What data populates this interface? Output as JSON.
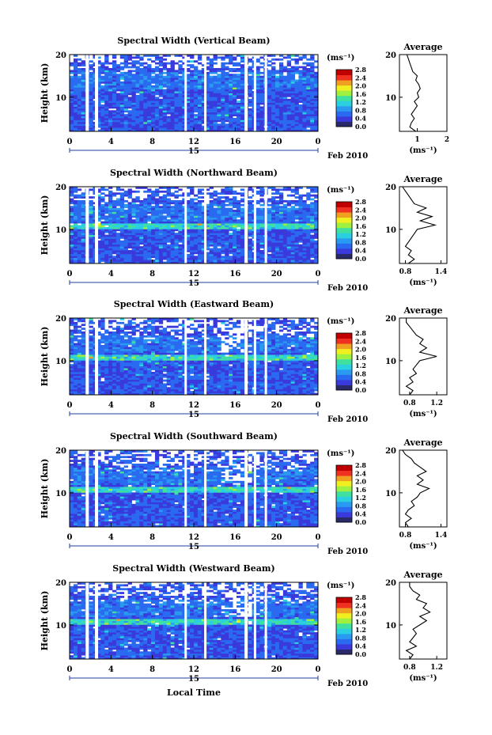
{
  "figure": {
    "xlabel": "Local Time",
    "date_label": "Feb 2010",
    "colorbar_unit": "(ms⁻¹)",
    "colorbar_ticks": [
      "0.0",
      "0.4",
      "0.8",
      "1.2",
      "1.6",
      "2.0",
      "2.4",
      "2.8"
    ],
    "colorbar_colors": [
      "#2a2a6a",
      "#3a3adc",
      "#2a6af0",
      "#2a9af0",
      "#2ad0e0",
      "#40e0a0",
      "#a0f040",
      "#f0f020",
      "#f0a020",
      "#f03020",
      "#c00000"
    ],
    "hour_ticks": [
      "0",
      "4",
      "8",
      "12",
      "16",
      "20",
      "0"
    ],
    "day_label": "15",
    "avg_title": "Average",
    "avg_xlabel": "(ms⁻¹)"
  },
  "chart_data": [
    {
      "type": "heatmap",
      "title": "Spectral Width (Vertical Beam)",
      "ylabel": "Height (km)",
      "xlabel": "Local Time",
      "x_ticks": [
        "0",
        "4",
        "8",
        "12",
        "16",
        "20",
        "0"
      ],
      "y_ticks": [
        "10",
        "20"
      ],
      "ylim": [
        2,
        20
      ],
      "colorbar": {
        "label": "(ms⁻¹)",
        "range": [
          0,
          2.8
        ]
      },
      "average": {
        "title": "Average",
        "xlabel": "(ms⁻¹)",
        "x_ticks": [
          "1",
          "2"
        ],
        "xlim": [
          0.4,
          2.0
        ],
        "heights": [
          2,
          3,
          4,
          5,
          6,
          7,
          8,
          9,
          10,
          11,
          12,
          13,
          14,
          15,
          16,
          17,
          18,
          19,
          20
        ],
        "values": [
          0.95,
          0.75,
          0.8,
          0.9,
          0.8,
          0.9,
          1.0,
          0.9,
          1.05,
          1.0,
          1.1,
          1.05,
          0.95,
          1.0,
          0.85,
          0.8,
          0.75,
          0.7,
          0.65
        ]
      }
    },
    {
      "type": "heatmap",
      "title": "Spectral Width (Northward Beam)",
      "ylabel": "Height (km)",
      "xlabel": "Local Time",
      "x_ticks": [
        "0",
        "4",
        "8",
        "12",
        "16",
        "20",
        "0"
      ],
      "y_ticks": [
        "10",
        "20"
      ],
      "ylim": [
        2,
        20
      ],
      "colorbar": {
        "label": "(ms⁻¹)",
        "range": [
          0,
          2.8
        ]
      },
      "average": {
        "title": "Average",
        "xlabel": "(ms⁻¹)",
        "x_ticks": [
          "0.8",
          "1.4"
        ],
        "xlim": [
          0.7,
          1.5
        ],
        "heights": [
          2,
          3,
          4,
          5,
          6,
          7,
          8,
          9,
          10,
          11,
          12,
          13,
          14,
          15,
          16,
          17,
          18,
          19,
          20
        ],
        "values": [
          0.85,
          0.95,
          0.85,
          0.9,
          0.8,
          0.85,
          0.9,
          0.95,
          1.0,
          1.3,
          1.05,
          1.25,
          1.0,
          1.15,
          0.95,
          0.9,
          0.85,
          0.8,
          0.75
        ]
      }
    },
    {
      "type": "heatmap",
      "title": "Spectral Width (Eastward Beam)",
      "ylabel": "Height (km)",
      "xlabel": "Local Time",
      "x_ticks": [
        "0",
        "4",
        "8",
        "12",
        "16",
        "20",
        "0"
      ],
      "y_ticks": [
        "10",
        "20"
      ],
      "ylim": [
        2,
        20
      ],
      "colorbar": {
        "label": "(ms⁻¹)",
        "range": [
          0,
          2.8
        ]
      },
      "average": {
        "title": "Average",
        "xlabel": "(ms⁻¹)",
        "x_ticks": [
          "0.8",
          "1.2"
        ],
        "xlim": [
          0.65,
          1.35
        ],
        "heights": [
          2,
          3,
          4,
          5,
          6,
          7,
          8,
          9,
          10,
          11,
          12,
          13,
          14,
          15,
          16,
          17,
          18,
          19,
          20
        ],
        "values": [
          0.8,
          0.85,
          0.75,
          0.85,
          0.8,
          0.9,
          0.85,
          0.9,
          0.95,
          1.2,
          0.95,
          1.05,
          0.95,
          1.0,
          0.9,
          0.85,
          0.8,
          0.75,
          0.75
        ]
      }
    },
    {
      "type": "heatmap",
      "title": "Spectral Width (Southward Beam)",
      "ylabel": "Height (km)",
      "xlabel": "Local Time",
      "x_ticks": [
        "0",
        "4",
        "8",
        "12",
        "16",
        "20",
        "0"
      ],
      "y_ticks": [
        "10",
        "20"
      ],
      "ylim": [
        2,
        20
      ],
      "colorbar": {
        "label": "(ms⁻¹)",
        "range": [
          0,
          2.8
        ]
      },
      "average": {
        "title": "Average",
        "xlabel": "(ms⁻¹)",
        "x_ticks": [
          "0.8",
          "1.4"
        ],
        "xlim": [
          0.7,
          1.5
        ],
        "heights": [
          2,
          3,
          4,
          5,
          6,
          7,
          8,
          9,
          10,
          11,
          12,
          13,
          14,
          15,
          16,
          17,
          18,
          19,
          20
        ],
        "values": [
          0.85,
          0.8,
          0.9,
          0.8,
          0.85,
          0.95,
          0.9,
          1.0,
          1.05,
          1.2,
          1.0,
          1.1,
          1.0,
          1.15,
          1.05,
          0.95,
          0.9,
          0.8,
          0.75
        ]
      }
    },
    {
      "type": "heatmap",
      "title": "Spectral Width (Westward Beam)",
      "ylabel": "Height (km)",
      "xlabel": "Local Time",
      "x_ticks": [
        "0",
        "4",
        "8",
        "12",
        "16",
        "20",
        "0"
      ],
      "y_ticks": [
        "10",
        "20"
      ],
      "ylim": [
        2,
        20
      ],
      "colorbar": {
        "label": "(ms⁻¹)",
        "range": [
          0,
          2.8
        ]
      },
      "average": {
        "title": "Average",
        "xlabel": "(ms⁻¹)",
        "x_ticks": [
          "0.8",
          "1.2"
        ],
        "xlim": [
          0.65,
          1.35
        ],
        "heights": [
          2,
          3,
          4,
          5,
          6,
          7,
          8,
          9,
          10,
          11,
          12,
          13,
          14,
          15,
          16,
          17,
          18,
          19,
          20
        ],
        "values": [
          0.8,
          0.85,
          0.75,
          0.9,
          0.8,
          0.85,
          0.9,
          0.85,
          0.95,
          1.05,
          0.95,
          1.1,
          1.0,
          1.05,
          0.9,
          0.95,
          0.85,
          0.8,
          0.8
        ]
      }
    }
  ]
}
